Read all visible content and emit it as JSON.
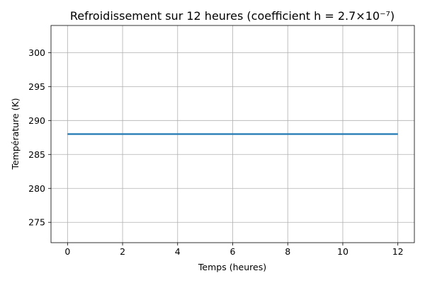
{
  "chart_data": {
    "type": "line",
    "title": "Refroidissement sur 12 heures (coefficient h = 2.7×10⁻⁷)",
    "xlabel": "Temps (heures)",
    "ylabel": "Température (K)",
    "xlim": [
      -0.6,
      12.6
    ],
    "ylim": [
      272,
      304
    ],
    "xticks": [
      0,
      2,
      4,
      6,
      8,
      10,
      12
    ],
    "yticks": [
      275,
      280,
      285,
      290,
      295,
      300
    ],
    "grid": true,
    "series": [
      {
        "color": "#1f77b4",
        "x": [
          0,
          1,
          2,
          3,
          4,
          5,
          6,
          7,
          8,
          9,
          10,
          11,
          12
        ],
        "y": [
          288,
          288,
          288,
          288,
          288,
          288,
          288,
          288,
          288,
          288,
          288,
          288,
          288
        ]
      }
    ]
  }
}
